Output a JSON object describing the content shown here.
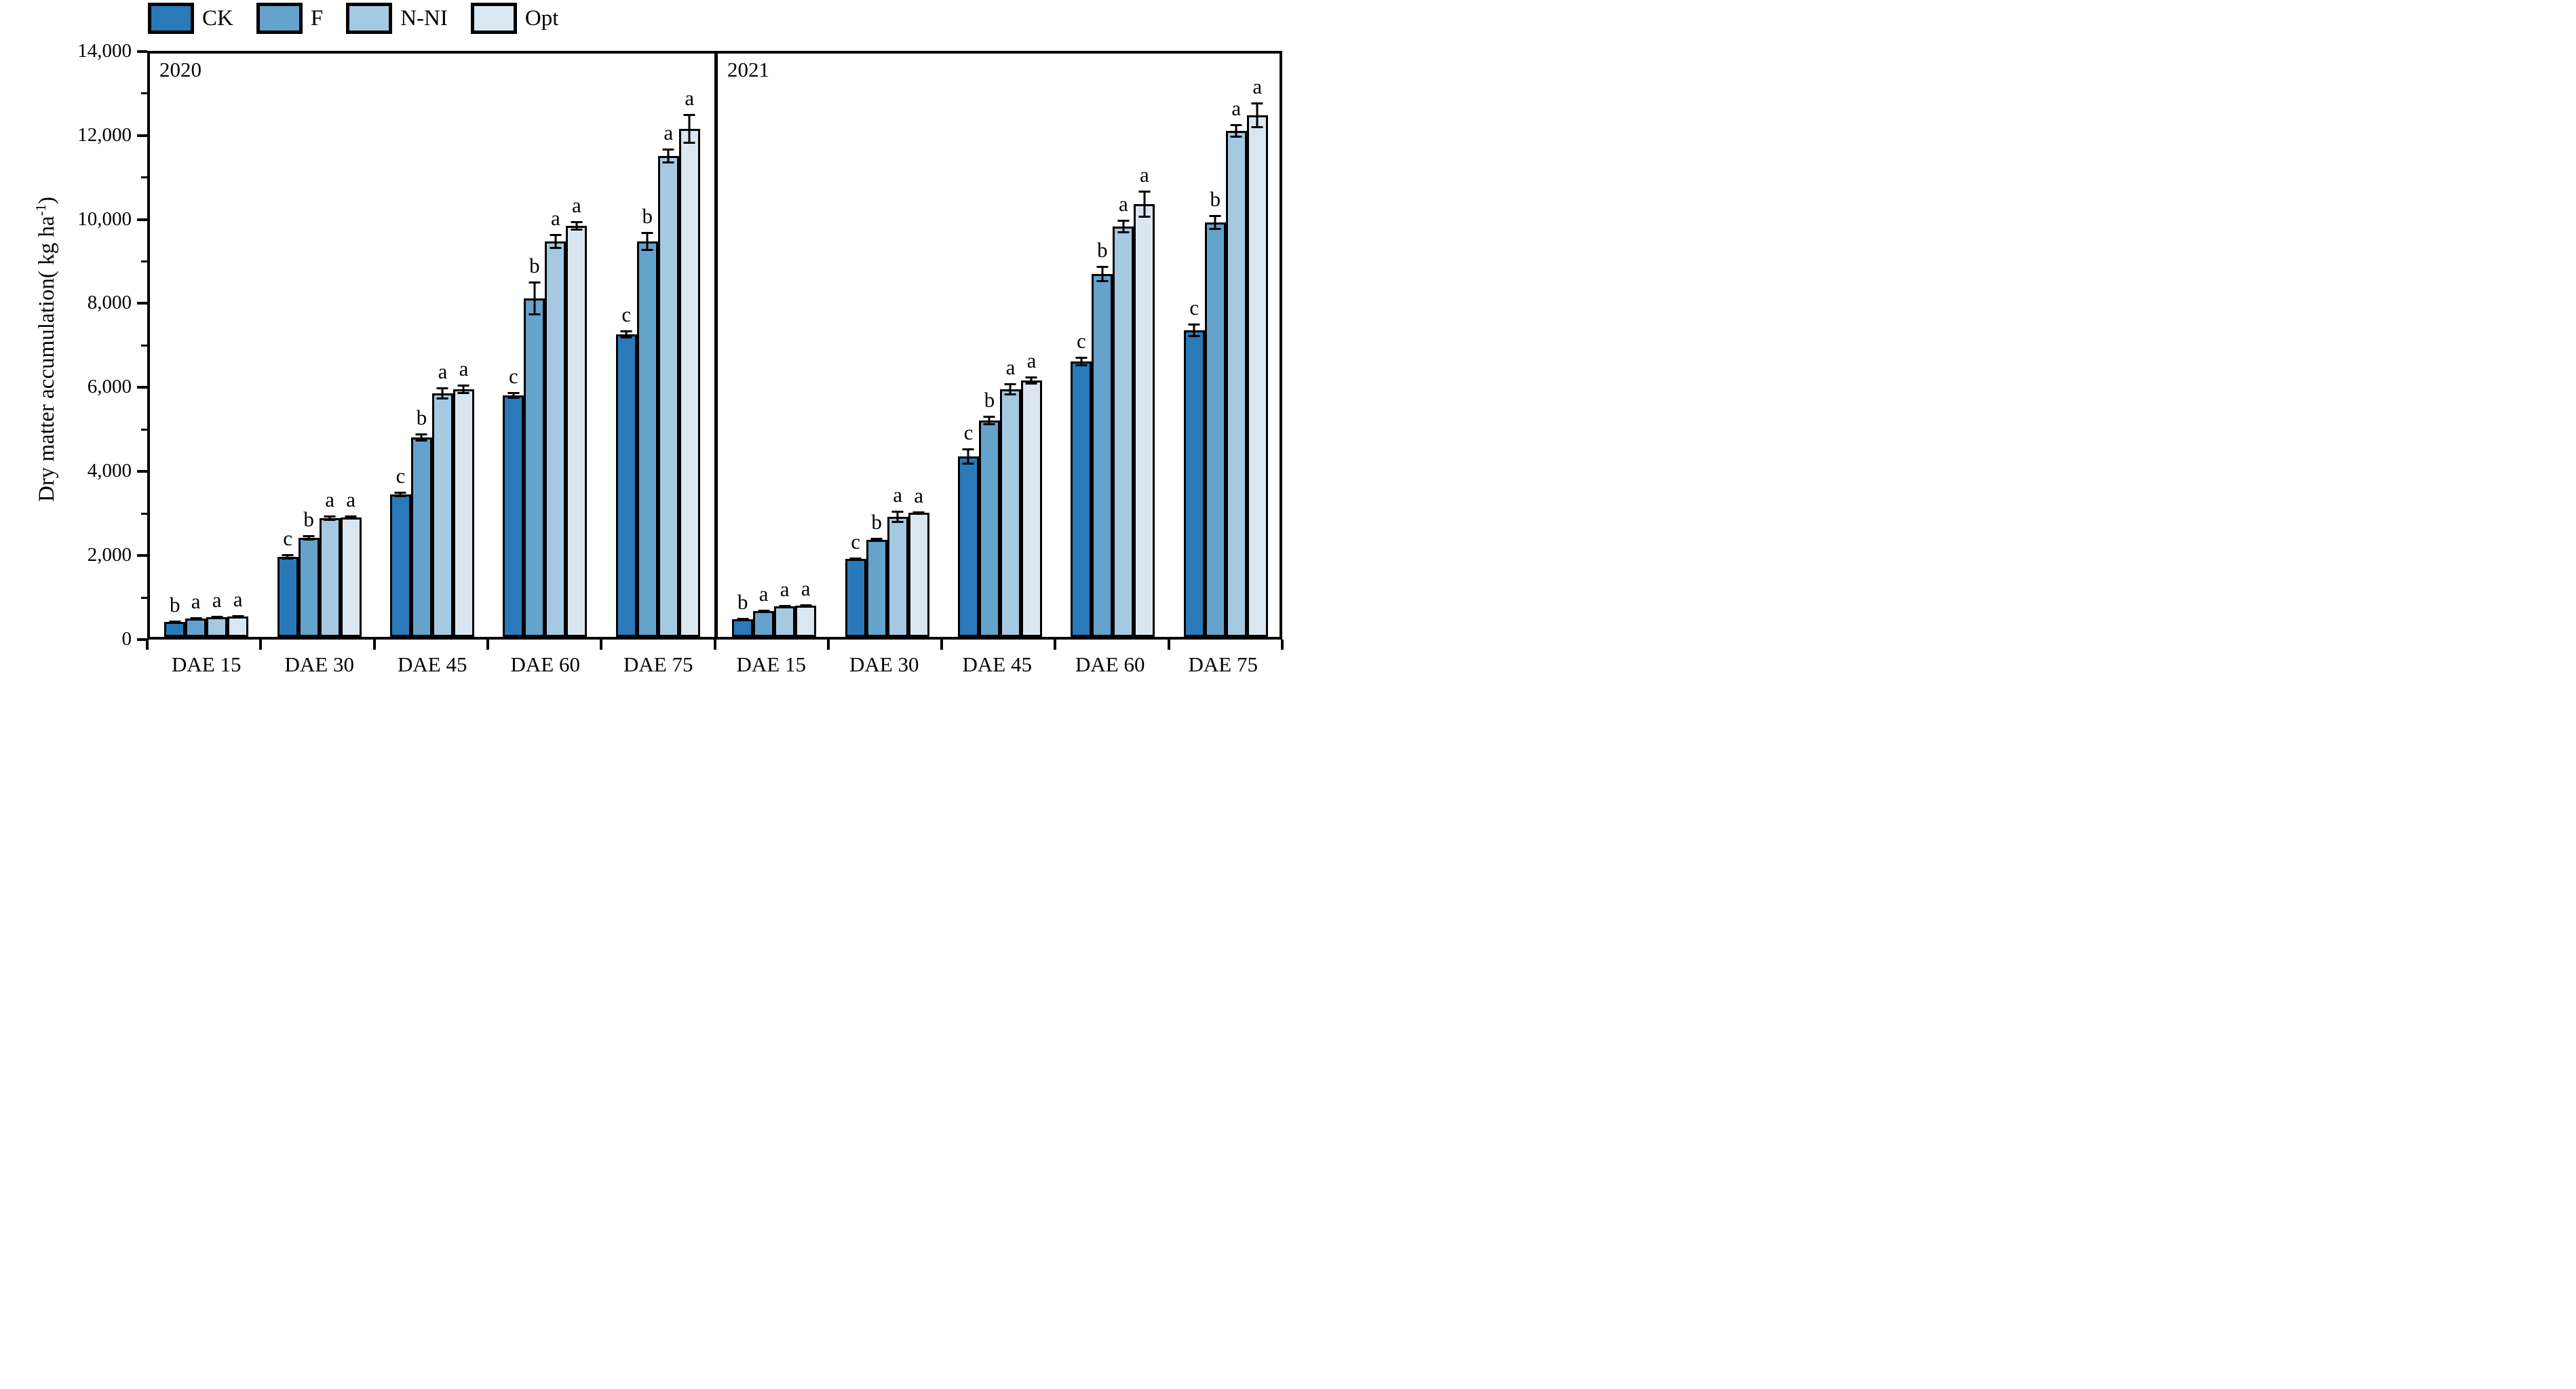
{
  "figure": {
    "background": "#ffffff",
    "axis_color": "#000000",
    "ylabel_prefix": "Dry matter accumulation(  kg ha",
    "ylabel_sup": "-1",
    "ylabel_suffix": ")"
  },
  "chart_data": {
    "type": "bar",
    "title": "",
    "xlabel": "",
    "ylabel": "Dry matter accumulation( kg ha⁻¹)",
    "ylim": [
      0,
      14000
    ],
    "grid": false,
    "legend_position": "top-left",
    "y_major_ticks": [
      0,
      2000,
      4000,
      6000,
      8000,
      10000,
      12000,
      14000
    ],
    "y_tick_labels": [
      "0",
      "2,000",
      "4,000",
      "6,000",
      "8,000",
      "10,000",
      "12,000",
      "14,000"
    ],
    "y_minor_ticks": [
      1000,
      3000,
      5000,
      7000,
      9000,
      11000,
      13000
    ],
    "treatments": [
      {
        "name": "CK",
        "color": "#2a79b9"
      },
      {
        "name": "F",
        "color": "#64a3cc"
      },
      {
        "name": "N-NI",
        "color": "#a6c9e2"
      },
      {
        "name": "Opt",
        "color": "#dbe7f0"
      }
    ],
    "categories": [
      "DAE 15",
      "DAE 30",
      "DAE 45",
      "DAE 60",
      "DAE 75"
    ],
    "panels": [
      {
        "year": "2020",
        "series": [
          {
            "name": "CK",
            "values": [
              350,
              1900,
              3390,
              5750,
              7200
            ],
            "errors": [
              30,
              60,
              60,
              80,
              90
            ],
            "letters": [
              "b",
              "c",
              "c",
              "c",
              "c"
            ]
          },
          {
            "name": "F",
            "values": [
              440,
              2350,
              4740,
              8050,
              9420
            ],
            "errors": [
              30,
              60,
              90,
              400,
              220
            ],
            "letters": [
              "a",
              "b",
              "b",
              "b",
              "b"
            ]
          },
          {
            "name": "N-NI",
            "values": [
              470,
              2830,
              5800,
              9420,
              11450
            ],
            "errors": [
              20,
              60,
              150,
              180,
              180
            ],
            "letters": [
              "a",
              "a",
              "a",
              "a",
              "a"
            ]
          },
          {
            "name": "Opt",
            "values": [
              480,
              2840,
              5890,
              9790,
              12090
            ],
            "errors": [
              20,
              50,
              120,
              120,
              350
            ],
            "letters": [
              "a",
              "a",
              "a",
              "a",
              "a"
            ]
          }
        ]
      },
      {
        "year": "2021",
        "series": [
          {
            "name": "CK",
            "values": [
              420,
              1850,
              4300,
              6550,
              7300
            ],
            "errors": [
              30,
              40,
              190,
              120,
              160
            ],
            "letters": [
              "b",
              "c",
              "c",
              "c",
              "c"
            ]
          },
          {
            "name": "F",
            "values": [
              620,
              2310,
              5150,
              8630,
              9870
            ],
            "errors": [
              25,
              50,
              120,
              190,
              175
            ],
            "letters": [
              "a",
              "b",
              "b",
              "b",
              "b"
            ]
          },
          {
            "name": "N-NI",
            "values": [
              720,
              2860,
              5900,
              9760,
              12040
            ],
            "errors": [
              20,
              140,
              145,
              160,
              165
            ],
            "letters": [
              "a",
              "a",
              "a",
              "a",
              "a"
            ]
          },
          {
            "name": "Opt",
            "values": [
              740,
              2960,
              6100,
              10300,
              12420
            ],
            "errors": [
              20,
              40,
              95,
              320,
              300
            ],
            "letters": [
              "a",
              "a",
              "a",
              "a",
              "a"
            ]
          }
        ]
      }
    ]
  }
}
